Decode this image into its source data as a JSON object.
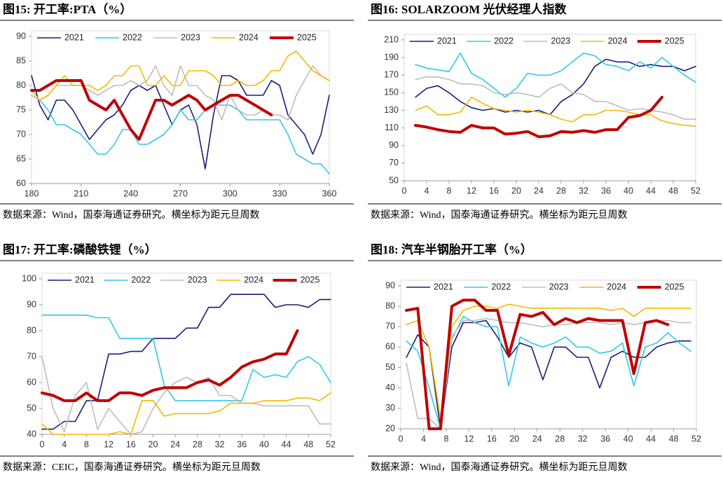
{
  "chart_data": [
    {
      "type": "line",
      "title": "图15:  开工率:PTA（%）",
      "note": "数据来源：Wind，国泰海通证券研究。横坐标为距元旦周数",
      "x": [
        180,
        185,
        190,
        195,
        200,
        205,
        210,
        215,
        220,
        225,
        230,
        235,
        240,
        245,
        250,
        255,
        260,
        265,
        270,
        275,
        280,
        285,
        290,
        295,
        300,
        305,
        310,
        315,
        320,
        325,
        330,
        335,
        340,
        345,
        350,
        355,
        360
      ],
      "xlim": [
        180,
        360
      ],
      "xticks": [
        180,
        210,
        240,
        270,
        300,
        330,
        360
      ],
      "ylim": [
        60,
        90
      ],
      "yticks": [
        60,
        65,
        70,
        75,
        80,
        85,
        90
      ],
      "series": [
        {
          "name": "2021",
          "color": "#1b1b78",
          "values": [
            82,
            76,
            73,
            77,
            77,
            75,
            72,
            69,
            71,
            73,
            74,
            76,
            79,
            80,
            79,
            80,
            76,
            72,
            75,
            76,
            72,
            63,
            74,
            82,
            82,
            81,
            78,
            78,
            78,
            81,
            80,
            74,
            72,
            70,
            66,
            70,
            78
          ]
        },
        {
          "name": "2022",
          "color": "#33c7ec",
          "values": [
            78,
            77,
            75,
            72,
            72,
            71,
            70,
            68,
            66,
            66,
            68,
            71,
            71,
            68,
            68,
            69,
            70,
            72,
            75,
            73,
            73,
            75,
            76,
            76,
            76,
            75,
            73,
            73,
            73,
            73,
            73,
            70,
            66,
            65,
            64,
            64,
            62
          ]
        },
        {
          "name": "2023",
          "color": "#bdbdbd",
          "values": [
            78,
            77,
            78,
            80,
            80,
            80,
            80,
            79,
            78,
            79,
            80,
            80,
            81,
            80,
            81,
            84,
            80,
            78,
            84,
            80,
            80,
            78,
            77,
            73,
            78,
            75,
            74,
            74,
            75,
            74,
            74,
            73,
            78,
            81,
            84,
            82,
            81
          ]
        },
        {
          "name": "2024",
          "color": "#f4b900",
          "values": [
            79,
            77,
            78,
            80,
            82,
            80,
            80,
            80,
            79,
            80,
            82,
            82,
            84,
            84,
            80,
            80,
            82,
            80,
            80,
            83,
            83,
            83,
            82,
            80,
            80,
            81,
            80,
            80,
            81,
            83,
            83,
            86,
            87,
            85,
            83,
            82,
            81
          ]
        },
        {
          "name": "2025",
          "color": "#c00000",
          "values": [
            79,
            79,
            80,
            81,
            81,
            81,
            81,
            77,
            76,
            75,
            77,
            74,
            71,
            69,
            73,
            77,
            77,
            76,
            77,
            78,
            77,
            75,
            76,
            77,
            78,
            78,
            77,
            76,
            75,
            74,
            null,
            null,
            null,
            null,
            null,
            null,
            null
          ]
        }
      ]
    },
    {
      "type": "line",
      "title": "图16:  SOLARZOOM 光伏经理人指数",
      "note": "数据来源：Wind，国泰海通证券研究。横坐标为距元旦周数",
      "x": [
        2,
        4,
        6,
        8,
        10,
        12,
        14,
        16,
        18,
        20,
        22,
        24,
        26,
        28,
        30,
        32,
        34,
        36,
        38,
        40,
        42,
        44,
        46,
        48,
        50,
        52
      ],
      "xlim": [
        0,
        52
      ],
      "xticks": [
        0,
        4,
        8,
        12,
        16,
        20,
        24,
        28,
        32,
        36,
        40,
        44,
        48,
        52
      ],
      "ylim": [
        50,
        210
      ],
      "yticks": [
        50,
        70,
        90,
        110,
        130,
        150,
        170,
        190,
        210
      ],
      "series": [
        {
          "name": "2021",
          "color": "#1b1b78",
          "values": [
            145,
            155,
            158,
            150,
            140,
            133,
            130,
            132,
            128,
            130,
            128,
            130,
            125,
            140,
            148,
            160,
            180,
            188,
            185,
            185,
            180,
            182,
            180,
            180,
            175,
            180
          ]
        },
        {
          "name": "2022",
          "color": "#33c7ec",
          "values": [
            182,
            178,
            176,
            174,
            195,
            172,
            165,
            155,
            145,
            155,
            172,
            170,
            170,
            175,
            185,
            195,
            192,
            182,
            180,
            175,
            185,
            178,
            190,
            180,
            170,
            162
          ]
        },
        {
          "name": "2023",
          "color": "#bdbdbd",
          "values": [
            165,
            168,
            168,
            165,
            160,
            160,
            158,
            150,
            148,
            150,
            148,
            145,
            155,
            160,
            150,
            148,
            140,
            140,
            135,
            130,
            132,
            130,
            128,
            125,
            120,
            120
          ]
        },
        {
          "name": "2024",
          "color": "#f4b900",
          "values": [
            130,
            135,
            125,
            125,
            128,
            145,
            138,
            132,
            130,
            128,
            130,
            128,
            125,
            120,
            117,
            125,
            125,
            130,
            130,
            128,
            125,
            125,
            118,
            115,
            113,
            112
          ]
        },
        {
          "name": "2025",
          "color": "#c00000",
          "values": [
            113,
            111,
            108,
            106,
            105,
            113,
            110,
            110,
            103,
            104,
            106,
            100,
            101,
            106,
            105,
            107,
            105,
            108,
            108,
            122,
            124,
            130,
            145,
            null,
            null,
            null
          ]
        }
      ]
    },
    {
      "type": "line",
      "title": "图17:  开工率:磷酸铁锂（%）",
      "note": "数据来源：CEIC，国泰海通证券研究。横坐标为距元旦周数",
      "x": [
        0,
        2,
        4,
        6,
        8,
        10,
        12,
        14,
        16,
        18,
        20,
        22,
        24,
        26,
        28,
        30,
        32,
        34,
        36,
        38,
        40,
        42,
        44,
        46,
        48,
        50,
        52
      ],
      "xlim": [
        0,
        52
      ],
      "xticks": [
        0,
        4,
        8,
        12,
        16,
        20,
        24,
        28,
        32,
        36,
        40,
        44,
        48,
        52
      ],
      "ylim": [
        40,
        100
      ],
      "yticks": [
        40,
        50,
        60,
        70,
        80,
        90,
        100
      ],
      "series": [
        {
          "name": "2021",
          "color": "#1b1b78",
          "values": [
            42,
            42,
            45,
            45,
            53,
            53,
            71,
            71,
            72,
            72,
            77,
            77,
            77,
            81,
            81,
            89,
            89,
            94,
            94,
            94,
            94,
            89,
            90,
            90,
            89,
            92,
            92
          ]
        },
        {
          "name": "2022",
          "color": "#33c7ec",
          "values": [
            86,
            86,
            86,
            86,
            86,
            85,
            85,
            77,
            77,
            77,
            77,
            59,
            53,
            53,
            53,
            53,
            53,
            53,
            53,
            65,
            62,
            63,
            62,
            68,
            70,
            67,
            60
          ]
        },
        {
          "name": "2023",
          "color": "#bdbdbd",
          "values": [
            70,
            50,
            41,
            55,
            60,
            42,
            50,
            45,
            40,
            41,
            50,
            56,
            60,
            62,
            60,
            62,
            55,
            55,
            52,
            52,
            51,
            51,
            51,
            51,
            51,
            44,
            44
          ]
        },
        {
          "name": "2024",
          "color": "#f4b900",
          "values": [
            44,
            40,
            40,
            40,
            40,
            40,
            40,
            41,
            40,
            53,
            53,
            47,
            48,
            48,
            48,
            48,
            49,
            52,
            52,
            52,
            53,
            53,
            53,
            54,
            54,
            53,
            56
          ]
        },
        {
          "name": "2025",
          "color": "#c00000",
          "values": [
            56,
            55,
            53,
            53,
            56,
            53,
            53,
            56,
            56,
            55,
            57,
            58,
            58,
            58,
            60,
            61,
            59,
            62,
            66,
            68,
            69,
            71,
            71,
            80,
            null,
            null,
            null
          ]
        }
      ]
    },
    {
      "type": "line",
      "title": "图18:  汽车半钢胎开工率（%）",
      "note": "数据来源：Wind，国泰海通证券研究。横坐标为距元旦周数",
      "x": [
        1,
        3,
        5,
        7,
        9,
        11,
        13,
        15,
        17,
        19,
        21,
        23,
        25,
        27,
        29,
        31,
        33,
        35,
        37,
        39,
        41,
        43,
        45,
        47,
        49,
        51
      ],
      "xlim": [
        0,
        52
      ],
      "xticks": [
        0,
        4,
        8,
        12,
        16,
        20,
        24,
        28,
        32,
        36,
        40,
        44,
        48,
        52
      ],
      "ylim": [
        20,
        90
      ],
      "yticks": [
        20,
        30,
        40,
        50,
        60,
        70,
        80,
        90
      ],
      "series": [
        {
          "name": "2021",
          "color": "#1b1b78",
          "values": [
            55,
            66,
            60,
            20,
            60,
            72,
            72,
            73,
            65,
            55,
            62,
            60,
            44,
            60,
            60,
            55,
            55,
            40,
            55,
            58,
            55,
            55,
            60,
            62,
            63,
            63
          ]
        },
        {
          "name": "2022",
          "color": "#33c7ec",
          "values": [
            63,
            58,
            40,
            20,
            64,
            75,
            72,
            70,
            70,
            41,
            65,
            62,
            60,
            62,
            65,
            60,
            60,
            57,
            58,
            62,
            41,
            60,
            62,
            67,
            62,
            58
          ]
        },
        {
          "name": "2023",
          "color": "#bdbdbd",
          "values": [
            52,
            25,
            25,
            20,
            65,
            73,
            73,
            74,
            73,
            72,
            72,
            71,
            70,
            71,
            71,
            72,
            72,
            72,
            71,
            72,
            71,
            72,
            73,
            73,
            72,
            72
          ]
        },
        {
          "name": "2024",
          "color": "#f4b900",
          "values": [
            71,
            73,
            60,
            25,
            70,
            78,
            80,
            80,
            79,
            81,
            80,
            79,
            79,
            79,
            79,
            79,
            79,
            79,
            78,
            79,
            75,
            79,
            79,
            79,
            79,
            79
          ]
        },
        {
          "name": "2025",
          "color": "#c00000",
          "values": [
            78,
            79,
            20,
            20,
            80,
            83,
            83,
            78,
            78,
            56,
            76,
            75,
            77,
            71,
            74,
            72,
            74,
            73,
            73,
            73,
            47,
            72,
            73,
            71,
            null,
            null
          ]
        }
      ]
    }
  ]
}
